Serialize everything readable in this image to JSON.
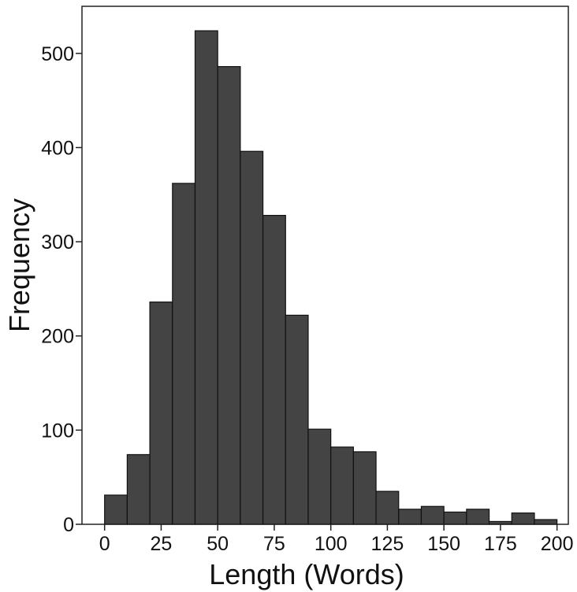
{
  "chart_data": {
    "type": "bar",
    "title": "",
    "xlabel": "Length (Words)",
    "ylabel": "Frequency",
    "bin_width": 10,
    "bins_start": [
      0,
      10,
      20,
      30,
      40,
      50,
      60,
      70,
      80,
      90,
      100,
      110,
      120,
      130,
      140,
      150,
      160,
      170,
      180,
      190
    ],
    "values": [
      31,
      74,
      236,
      362,
      524,
      486,
      396,
      328,
      222,
      101,
      82,
      77,
      35,
      16,
      19,
      13,
      16,
      3,
      12,
      5
    ],
    "xlim": [
      -10,
      205
    ],
    "ylim": [
      0,
      550
    ],
    "x_ticks": [
      {
        "value": 0,
        "label": "0"
      },
      {
        "value": 25,
        "label": "25"
      },
      {
        "value": 50,
        "label": "50"
      },
      {
        "value": 75,
        "label": "75"
      },
      {
        "value": 100,
        "label": "100"
      },
      {
        "value": 125,
        "label": "125"
      },
      {
        "value": 150,
        "label": "150"
      },
      {
        "value": 175,
        "label": "175"
      },
      {
        "value": 200,
        "label": "200"
      }
    ],
    "y_ticks": [
      {
        "value": 0,
        "label": "0"
      },
      {
        "value": 100,
        "label": "100"
      },
      {
        "value": 200,
        "label": "200"
      },
      {
        "value": 300,
        "label": "300"
      },
      {
        "value": 400,
        "label": "400"
      },
      {
        "value": 500,
        "label": "500"
      }
    ],
    "grid": false,
    "bar_color": "#444444",
    "bar_edge_color": "#111111"
  }
}
